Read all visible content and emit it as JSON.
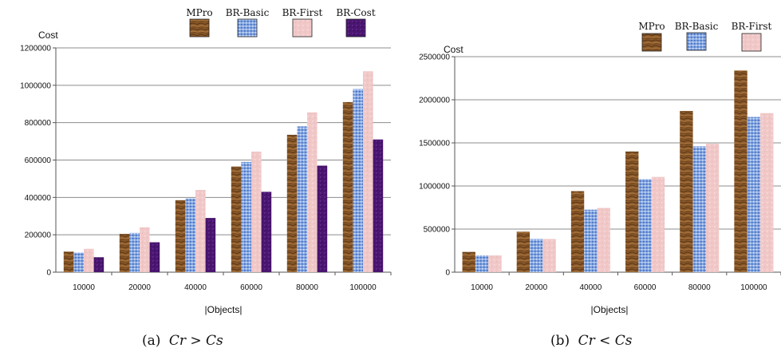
{
  "chart_data": [
    {
      "type": "bar",
      "caption_prefix": "(a)",
      "caption_math": "Cr > Cs",
      "ylabel": "Cost",
      "xlabel": "|Objects|",
      "categories": [
        "10000",
        "20000",
        "40000",
        "60000",
        "80000",
        "100000"
      ],
      "ylim": [
        0,
        1200000
      ],
      "yticks": [
        0,
        200000,
        400000,
        600000,
        800000,
        1000000,
        1200000
      ],
      "grid": true,
      "legend_position": "top",
      "series": [
        {
          "name": "MPro",
          "values": [
            110000,
            205000,
            385000,
            565000,
            735000,
            910000
          ]
        },
        {
          "name": "BR-Basic",
          "values": [
            105000,
            210000,
            395000,
            590000,
            780000,
            980000
          ]
        },
        {
          "name": "BR-First",
          "values": [
            125000,
            240000,
            440000,
            645000,
            855000,
            1075000
          ]
        },
        {
          "name": "BR-Cost",
          "values": [
            80000,
            160000,
            290000,
            430000,
            570000,
            710000
          ]
        }
      ]
    },
    {
      "type": "bar",
      "caption_prefix": "(b)",
      "caption_math": "Cr < Cs",
      "ylabel": "Cost",
      "xlabel": "|Objects|",
      "categories": [
        "10000",
        "20000",
        "40000",
        "60000",
        "80000",
        "100000"
      ],
      "ylim": [
        0,
        2500000
      ],
      "yticks": [
        0,
        500000,
        1000000,
        1500000,
        2000000,
        2500000
      ],
      "grid": true,
      "legend_position": "top",
      "series": [
        {
          "name": "MPro",
          "values": [
            235000,
            470000,
            940000,
            1400000,
            1870000,
            2340000
          ]
        },
        {
          "name": "BR-Basic",
          "values": [
            195000,
            385000,
            725000,
            1080000,
            1460000,
            1800000
          ]
        },
        {
          "name": "BR-First",
          "values": [
            195000,
            385000,
            745000,
            1105000,
            1490000,
            1845000
          ]
        }
      ]
    }
  ],
  "series_colors": {
    "MPro": "#8a5a2b",
    "BR-Basic": "#6f95d8",
    "BR-First": "#f0c4c4",
    "BR-Cost": "#4a1670"
  }
}
